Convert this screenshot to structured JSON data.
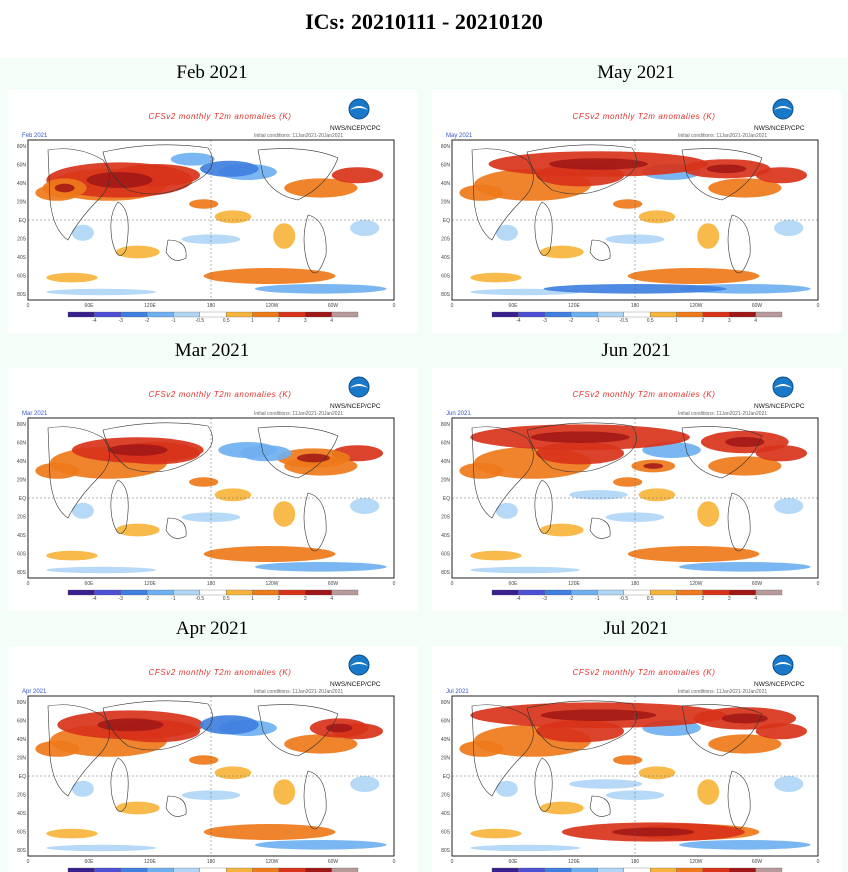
{
  "page_title": "ICs: 20210111 - 20210120",
  "plot_title": "CFSv2 monthly T2m anomalies (K)",
  "agency": "NWS/NCEP/CPC",
  "ic_note": "Initial conditions: 11Jan2021-20Jan2021",
  "lat_labels": [
    "80N",
    "60N",
    "40N",
    "20N",
    "EQ",
    "20S",
    "40S",
    "60S",
    "80S"
  ],
  "lon_labels": [
    "0",
    "60E",
    "120E",
    "180",
    "120W",
    "60W",
    "0"
  ],
  "colorbar_labels": [
    "-4",
    "-3",
    "-2",
    "-1",
    "-0.5",
    "0.5",
    "1",
    "2",
    "3",
    "4"
  ],
  "colorbar_colors": [
    "#3a1f8f",
    "#4d4fd6",
    "#3f7fe0",
    "#6fb0f0",
    "#b0d6f6",
    "#ffffff",
    "#f7b43c",
    "#ee7a1a",
    "#d8331a",
    "#a01616",
    "#b79a9a"
  ],
  "panels": [
    {
      "label": "Feb 2021",
      "tag": "Feb 2021"
    },
    {
      "label": "May 2021",
      "tag": "May 2021"
    },
    {
      "label": "Mar 2021",
      "tag": "Mar 2021"
    },
    {
      "label": "Jun 2021",
      "tag": "Jun 2021"
    },
    {
      "label": "Apr 2021",
      "tag": "Apr 2021"
    },
    {
      "label": "Jul 2021",
      "tag": "Jul 2021"
    }
  ]
}
